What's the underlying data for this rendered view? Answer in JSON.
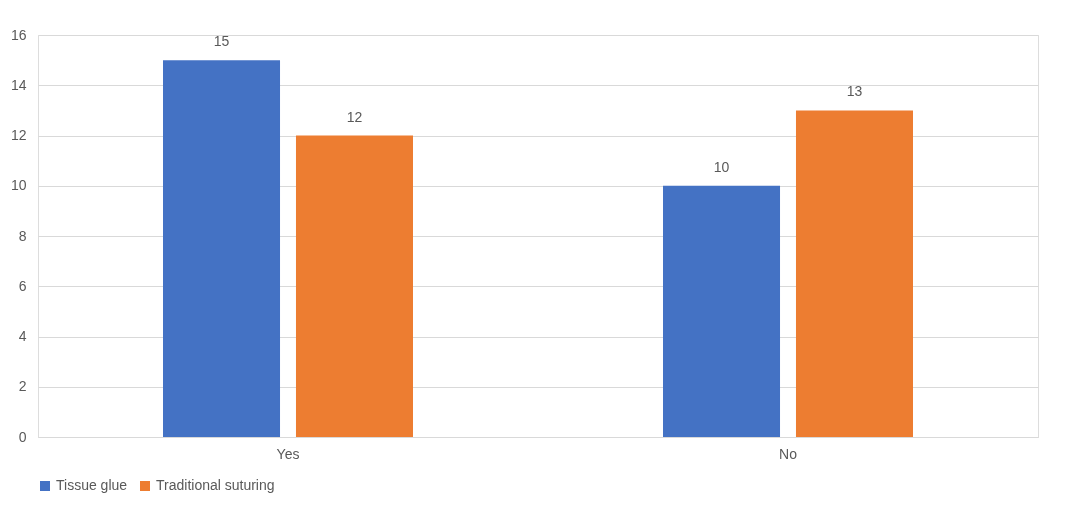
{
  "chart_data": {
    "type": "bar",
    "categories": [
      "Yes",
      "No"
    ],
    "series": [
      {
        "name": "Tissue glue",
        "color": "#4472c4",
        "values": [
          15,
          10
        ]
      },
      {
        "name": "Traditional suturing",
        "color": "#ed7d31",
        "values": [
          12,
          13
        ]
      }
    ],
    "ylim": [
      0,
      16
    ],
    "yticks": [
      0,
      2,
      4,
      6,
      8,
      10,
      12,
      14,
      16
    ],
    "grid": "y",
    "legend": "bottom",
    "data_labels": true
  }
}
